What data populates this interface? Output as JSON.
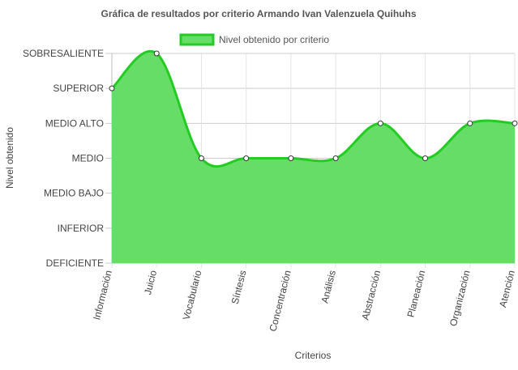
{
  "chart_data": {
    "type": "area",
    "title": "Gráfica de resultados por criterio Armando Ivan Valenzuela Quihuhs",
    "xlabel": "Criterios",
    "ylabel": "Nivel obtenido",
    "categories": [
      "Información",
      "Juicio",
      "Vocabulario",
      "Síntesis",
      "Concentración",
      "Análisis",
      "Abstracción",
      "Planeación",
      "Organización",
      "Atención"
    ],
    "levels": [
      "DEFICIENTE",
      "INFERIOR",
      "MEDIO BAJO",
      "MEDIO",
      "MEDIO ALTO",
      "SUPERIOR",
      "SOBRESALIENTE"
    ],
    "series": [
      {
        "name": "Nivel obtenido por criterio",
        "values": [
          5,
          6,
          3,
          3,
          3,
          3,
          4,
          3,
          4,
          4
        ]
      }
    ],
    "ylim": [
      0,
      6
    ],
    "grid": true,
    "legend_position": "top",
    "colors": {
      "fill": "#66dd66",
      "line": "#22cc22",
      "grid": "#cccccc",
      "text": "#444444",
      "title": "#555555"
    }
  }
}
